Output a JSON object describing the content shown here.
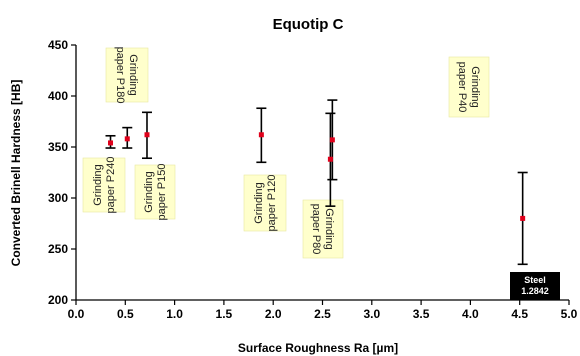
{
  "chart_data": {
    "type": "scatter",
    "title": "Equotip C",
    "xlabel": "Surface Roughness Ra [µm]",
    "ylabel": "Converted Brinell Hardness [HB]",
    "xlim": [
      0.0,
      5.0
    ],
    "ylim": [
      200,
      450
    ],
    "x_ticks": [
      "0.0",
      "0.5",
      "1.0",
      "1.5",
      "2.0",
      "2.5",
      "3.0",
      "3.5",
      "4.0",
      "4.5",
      "5.0"
    ],
    "y_ticks": [
      "200",
      "250",
      "300",
      "350",
      "400",
      "450"
    ],
    "grid": false,
    "colors": {
      "marker": "#e0001b",
      "errorbar": "#000000",
      "annotation_bg": "#ffffcc",
      "badge_bg": "#000000"
    },
    "points": [
      {
        "x": 0.35,
        "y": 354,
        "y_low": 349,
        "y_high": 361
      },
      {
        "x": 0.52,
        "y": 358,
        "y_low": 349,
        "y_high": 369
      },
      {
        "x": 0.72,
        "y": 362,
        "y_low": 339,
        "y_high": 384
      },
      {
        "x": 1.88,
        "y": 362,
        "y_low": 335,
        "y_high": 388
      },
      {
        "x": 2.58,
        "y": 338,
        "y_low": 292,
        "y_high": 383
      },
      {
        "x": 2.6,
        "y": 357,
        "y_low": 318,
        "y_high": 396
      },
      {
        "x": 4.53,
        "y": 280,
        "y_low": 235,
        "y_high": 325
      }
    ],
    "annotations": [
      {
        "lines": [
          "Grinding",
          "paper P240"
        ]
      },
      {
        "lines": [
          "Grinding",
          "paper P180"
        ]
      },
      {
        "lines": [
          "Grinding",
          "paper P150"
        ]
      },
      {
        "lines": [
          "Grinding",
          "paper P120"
        ]
      },
      {
        "lines": [
          "Grinding",
          "paper P80"
        ]
      },
      {
        "lines": [
          "Grinding",
          "paper P40"
        ]
      }
    ],
    "badge": {
      "lines": [
        "Steel",
        "1.2842"
      ]
    }
  }
}
